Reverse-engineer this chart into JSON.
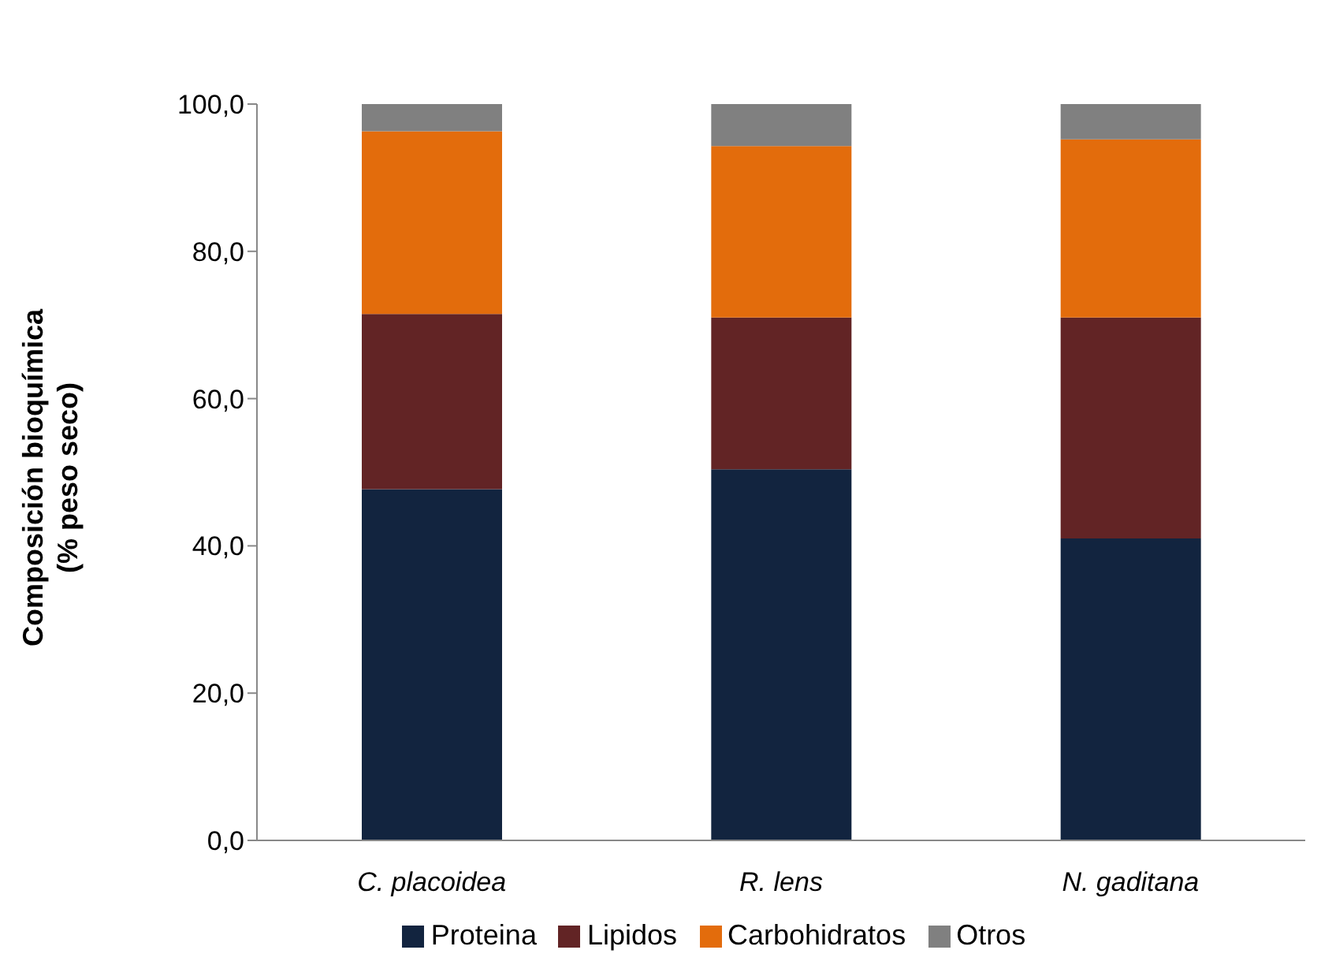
{
  "chart_data": {
    "type": "bar",
    "stacked": true,
    "ylabel": "Composición bioquímica\n(% peso seco)",
    "categories": [
      "C. placoidea",
      "R. lens",
      "N. gaditana"
    ],
    "series": [
      {
        "name": "Proteina",
        "color": "#12243f",
        "values": [
          47.7,
          50.4,
          41.0
        ]
      },
      {
        "name": "Lipidos",
        "color": "#622425",
        "values": [
          23.8,
          20.6,
          30.0
        ]
      },
      {
        "name": "Carbohidratos",
        "color": "#e36c0c",
        "values": [
          24.8,
          23.3,
          24.2
        ]
      },
      {
        "name": "Otros",
        "color": "#808080",
        "values": [
          3.7,
          5.7,
          4.8
        ]
      }
    ],
    "ylim": [
      0,
      100
    ],
    "yticks": [
      {
        "value": 0,
        "label": "0,0"
      },
      {
        "value": 20,
        "label": "20,0"
      },
      {
        "value": 40,
        "label": "40,0"
      },
      {
        "value": 60,
        "label": "60,0"
      },
      {
        "value": 80,
        "label": "80,0"
      },
      {
        "value": 100,
        "label": "100,0"
      }
    ],
    "grid": false,
    "legend": "bottom"
  }
}
